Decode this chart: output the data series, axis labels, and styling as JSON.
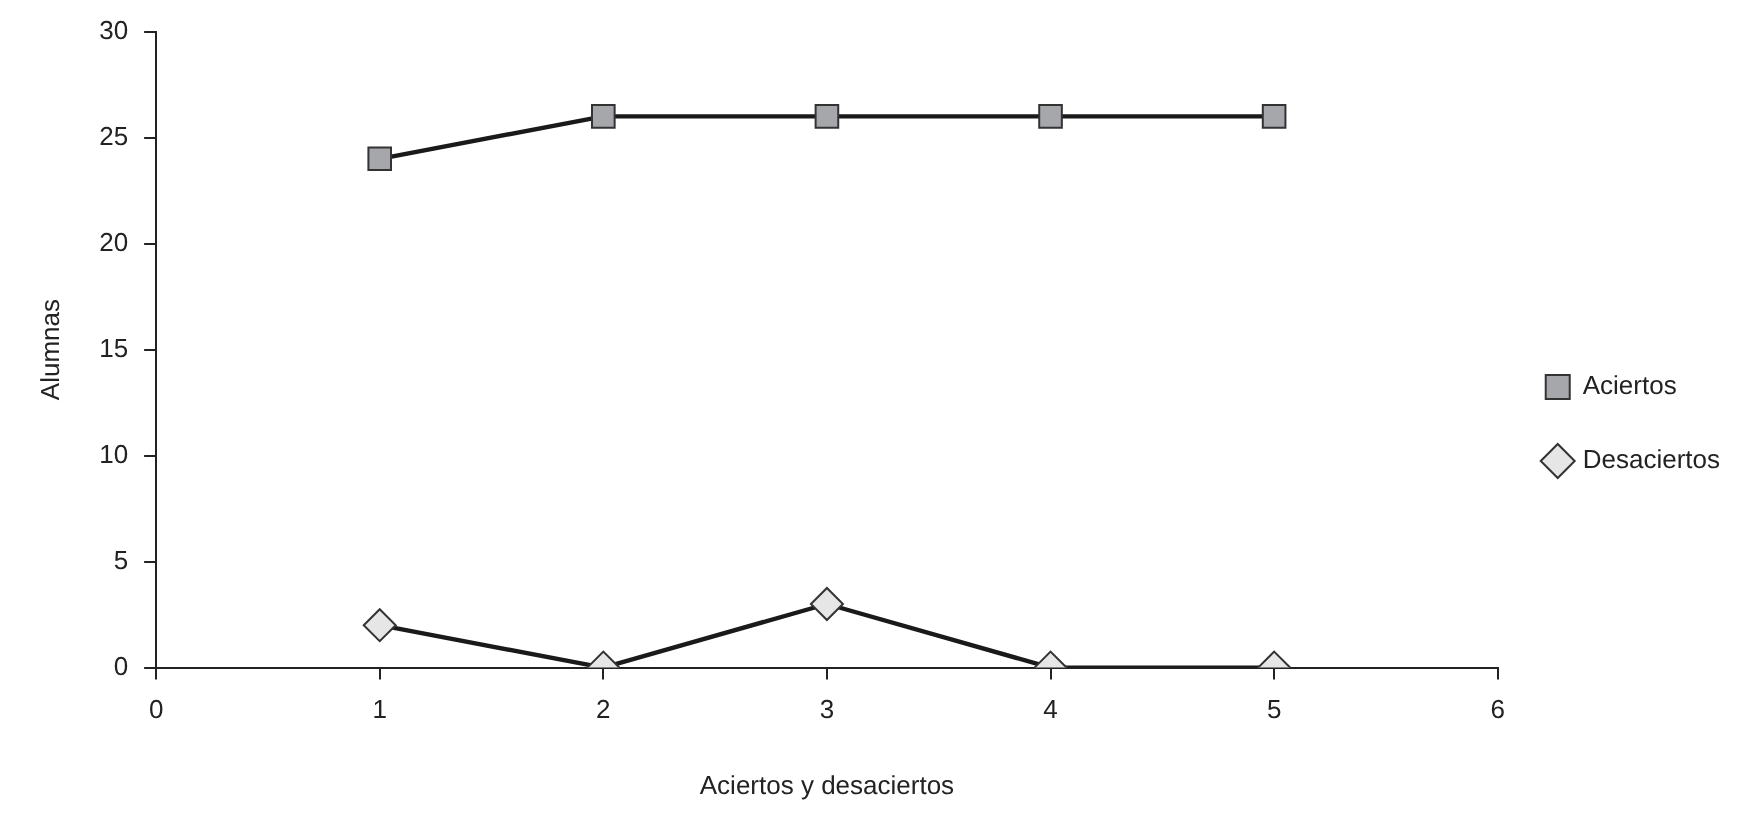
{
  "chart_data": {
    "type": "line",
    "xlabel": "Aciertos y desaciertos",
    "ylabel": "Alumnas",
    "x": [
      1,
      2,
      3,
      4,
      5
    ],
    "series": [
      {
        "name": "Aciertos",
        "color": "#a6a7aa",
        "marker": "square",
        "values": [
          24,
          26,
          26,
          26,
          26
        ]
      },
      {
        "name": "Desaciertos",
        "color": "#e6e6e6",
        "marker": "diamond",
        "values": [
          2,
          0,
          3,
          0,
          0
        ]
      }
    ],
    "xlim": [
      0,
      6
    ],
    "xticks": [
      0,
      1,
      2,
      3,
      4,
      5,
      6
    ],
    "ylim": [
      0,
      30
    ],
    "yticks": [
      0,
      5,
      10,
      15,
      20,
      25,
      30
    ],
    "grid": false,
    "legend": "right",
    "line_style": "solid"
  }
}
